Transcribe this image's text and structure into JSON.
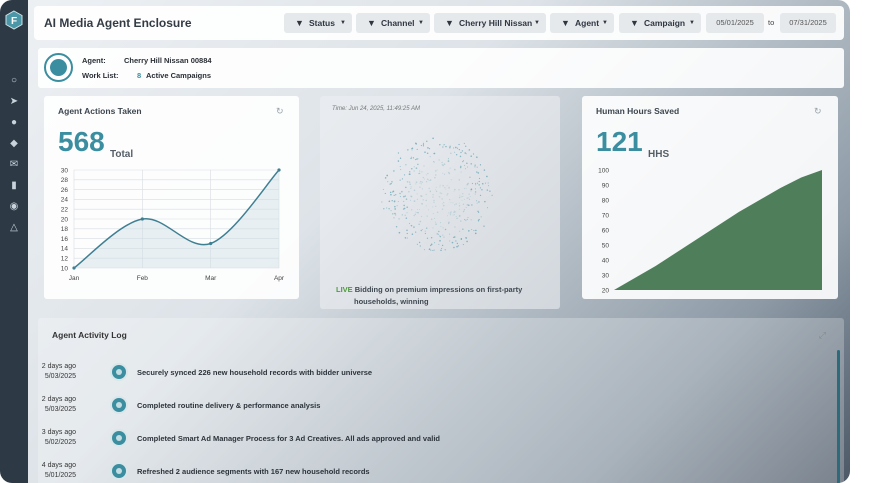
{
  "header": {
    "title": "AI Media Agent Enclosure"
  },
  "filters": [
    {
      "label": "Status"
    },
    {
      "label": "Channel"
    },
    {
      "label": "Cherry Hill Nissan"
    },
    {
      "label": "Agent"
    },
    {
      "label": "Campaign"
    }
  ],
  "date_range": {
    "start": "05/01/2025",
    "to": "to",
    "end": "07/31/2025"
  },
  "agent_info": {
    "agent_label": "Agent:",
    "agent_value": "Cherry Hill Nissan 00884",
    "worklist_label": "Work List:",
    "worklist_count": "8",
    "worklist_value": "Active Campaigns"
  },
  "actions_panel": {
    "title": "Agent Actions Taken",
    "value": "568",
    "unit": "Total"
  },
  "live_panel": {
    "timestamp": "Time: Jun 24, 2025, 11:49:25 AM",
    "live_tag": "LIVE",
    "message_line1": "Bidding on premium impressions on first-party",
    "message_line2": "households, winning"
  },
  "hours_panel": {
    "title": "Human Hours Saved",
    "value": "121",
    "unit": "HHS"
  },
  "activity_log": {
    "title": "Agent Activity Log",
    "entries": [
      {
        "ago": "2 days ago",
        "date": "5/03/2025",
        "message": "Securely synced 226 new household records with bidder universe"
      },
      {
        "ago": "2 days ago",
        "date": "5/03/2025",
        "message": "Completed routine delivery & performance analysis"
      },
      {
        "ago": "3 days ago",
        "date": "5/02/2025",
        "message": "Completed Smart Ad Manager Process for 3 Ad Creatives. All ads approved and valid"
      },
      {
        "ago": "4 days ago",
        "date": "5/01/2025",
        "message": "Refreshed 2 audience segments with 167 new household records"
      }
    ]
  },
  "colors": {
    "accent": "#3b8ea0",
    "sidebar": "#2d3a46",
    "area_green": "#4e7f5a",
    "live_green": "#4e9a3c"
  },
  "chart_data": [
    {
      "type": "line",
      "categories": [
        "Jan",
        "Feb",
        "Mar",
        "Apr"
      ],
      "series": [
        {
          "values": [
            10,
            20,
            15,
            30
          ]
        }
      ],
      "y_ticks": [
        10,
        12,
        14,
        16,
        18,
        20,
        22,
        24,
        26,
        28,
        30
      ],
      "ylim": [
        10,
        30
      ],
      "grid": true
    },
    {
      "type": "area",
      "x": [
        0,
        1,
        2,
        3,
        4,
        5,
        6,
        7,
        8,
        9,
        10
      ],
      "series": [
        {
          "values": [
            20,
            28,
            36,
            45,
            54,
            63,
            72,
            80,
            88,
            95,
            100
          ]
        }
      ],
      "y_ticks": [
        20,
        30,
        40,
        50,
        60,
        70,
        80,
        90,
        100
      ],
      "ylim": [
        20,
        100
      ],
      "grid": false
    }
  ]
}
